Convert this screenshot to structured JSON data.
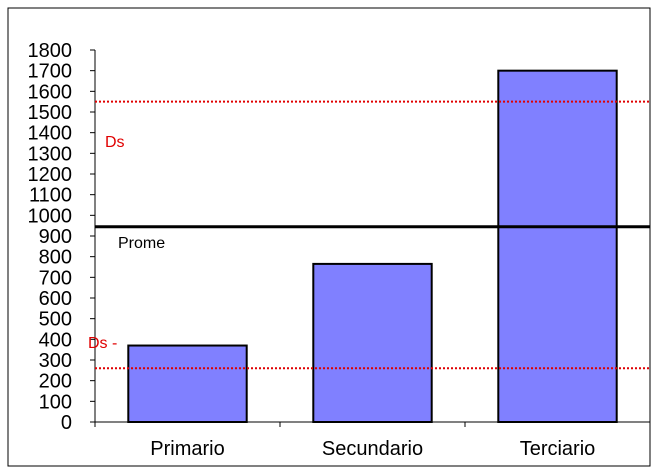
{
  "chart_data": {
    "type": "bar",
    "categories": [
      "Primario",
      "Secundario",
      "Terciario"
    ],
    "values": [
      370,
      765,
      1700
    ],
    "color": "#8080ff",
    "ylim": [
      0,
      1800
    ],
    "yticks": [
      0,
      100,
      200,
      300,
      400,
      500,
      600,
      700,
      800,
      900,
      1000,
      1100,
      1200,
      1300,
      1400,
      1500,
      1600,
      1700,
      1800
    ],
    "grid": false,
    "reference_lines": [
      {
        "label": "Ds",
        "value": 1550,
        "color": "#e00000",
        "style": "dotted"
      },
      {
        "label": "Prome",
        "value": 945,
        "color": "#000000",
        "style": "solid"
      },
      {
        "label": "Ds -",
        "value": 260,
        "color": "#e00000",
        "style": "dotted"
      }
    ]
  }
}
